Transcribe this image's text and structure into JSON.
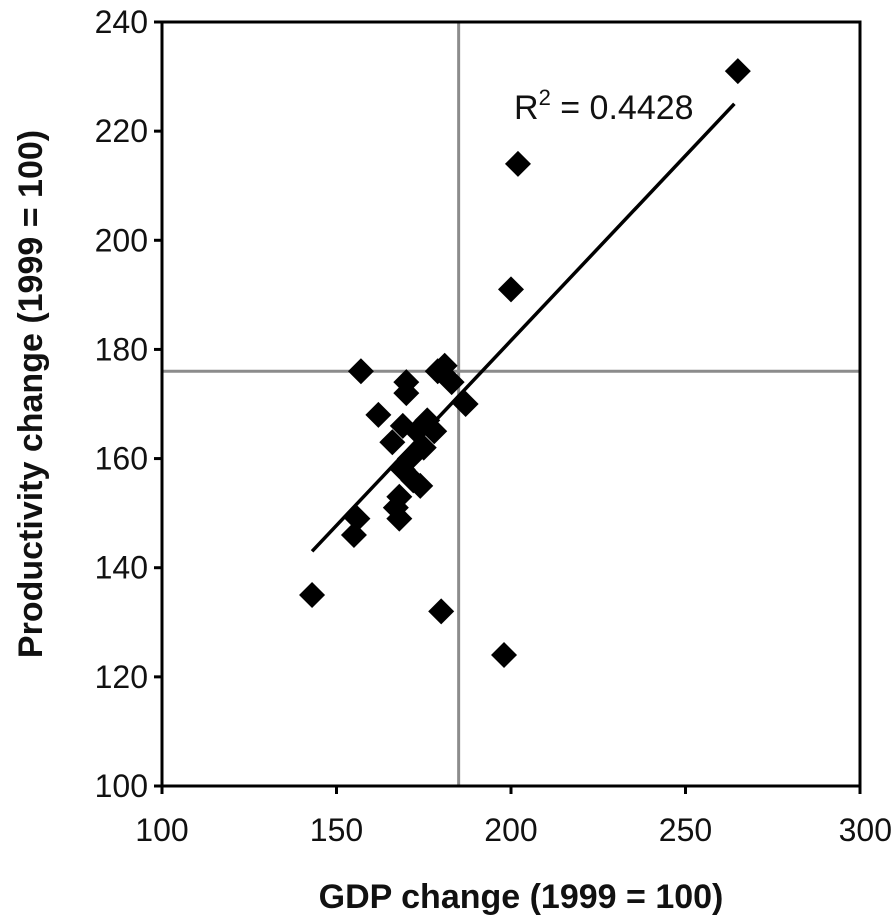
{
  "chart_data": {
    "type": "scatter",
    "title": "",
    "xlabel": "GDP change (1999 = 100)",
    "ylabel": "Productivity change (1999 = 100)",
    "xlim": [
      100,
      300
    ],
    "ylim": [
      100,
      240
    ],
    "xticks": [
      100,
      150,
      200,
      250,
      300
    ],
    "yticks": [
      100,
      120,
      140,
      160,
      180,
      200,
      220,
      240
    ],
    "xtick_labels": [
      "100",
      "150",
      "200",
      "250",
      "300"
    ],
    "ytick_labels": [
      "100",
      "120",
      "140",
      "160",
      "180",
      "200",
      "220",
      "240"
    ],
    "grid": false,
    "reference_lines": {
      "x": 185,
      "y": 176
    },
    "marker": "diamond",
    "marker_color": "#000000",
    "points": [
      {
        "x": 143,
        "y": 135
      },
      {
        "x": 155,
        "y": 146
      },
      {
        "x": 156,
        "y": 149
      },
      {
        "x": 157,
        "y": 176
      },
      {
        "x": 162,
        "y": 168
      },
      {
        "x": 166,
        "y": 163
      },
      {
        "x": 167,
        "y": 151
      },
      {
        "x": 168,
        "y": 149
      },
      {
        "x": 168,
        "y": 153
      },
      {
        "x": 169,
        "y": 166
      },
      {
        "x": 169,
        "y": 158
      },
      {
        "x": 170,
        "y": 174
      },
      {
        "x": 170,
        "y": 172
      },
      {
        "x": 171,
        "y": 160
      },
      {
        "x": 172,
        "y": 156
      },
      {
        "x": 173,
        "y": 165
      },
      {
        "x": 174,
        "y": 155
      },
      {
        "x": 175,
        "y": 162
      },
      {
        "x": 176,
        "y": 167
      },
      {
        "x": 178,
        "y": 165
      },
      {
        "x": 179,
        "y": 176
      },
      {
        "x": 180,
        "y": 132
      },
      {
        "x": 181,
        "y": 177
      },
      {
        "x": 183,
        "y": 174
      },
      {
        "x": 187,
        "y": 170
      },
      {
        "x": 198,
        "y": 124
      },
      {
        "x": 200,
        "y": 191
      },
      {
        "x": 202,
        "y": 214
      },
      {
        "x": 265,
        "y": 231
      }
    ],
    "trendline": {
      "x": [
        143,
        264
      ],
      "y": [
        143,
        225
      ]
    },
    "annotation": {
      "base": "R",
      "sup": "2",
      "rest": " = 0.4428",
      "x": 200,
      "y": 225
    }
  }
}
